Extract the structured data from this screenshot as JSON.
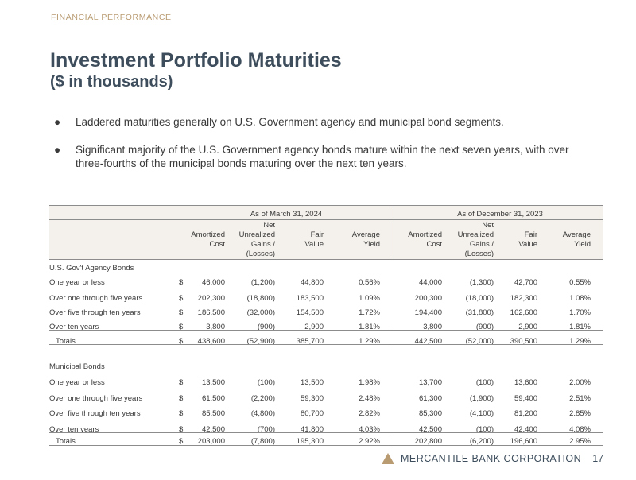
{
  "header": {
    "kicker": "FINANCIAL PERFORMANCE",
    "title": "Investment Portfolio Maturities",
    "subtitle": "($ in thousands)"
  },
  "bullets": [
    "Laddered maturities generally on U.S. Government agency and municipal bond segments.",
    "Significant majority of the U.S. Government agency bonds mature within the next seven years, with over three-fourths of the municipal bonds maturing over the next ten years."
  ],
  "table": {
    "group_left": "As of March 31, 2024",
    "group_right": "As of December 31, 2023",
    "columns": [
      "Amortized\nCost",
      "Net\nUnrealized\nGains /\n(Losses)",
      "Fair\nValue",
      "Average\nYield",
      "Amortized\nCost",
      "Net\nUnrealized\nGains /\n(Losses)",
      "Fair\nValue",
      "Average\nYield"
    ],
    "sections": [
      {
        "name": "U.S. Gov't Agency Bonds",
        "rows": [
          {
            "label": "One year or less",
            "values": [
              "46,000",
              "(1,200)",
              "44,800",
              "0.56%",
              "44,000",
              "(1,300)",
              "42,700",
              "0.55%"
            ]
          },
          {
            "label": "Over one through five years",
            "values": [
              "202,300",
              "(18,800)",
              "183,500",
              "1.09%",
              "200,300",
              "(18,000)",
              "182,300",
              "1.08%"
            ]
          },
          {
            "label": "Over five through ten years",
            "values": [
              "186,500",
              "(32,000)",
              "154,500",
              "1.72%",
              "194,400",
              "(31,800)",
              "162,600",
              "1.70%"
            ]
          },
          {
            "label": "Over ten years",
            "values": [
              "3,800",
              "(900)",
              "2,900",
              "1.81%",
              "3,800",
              "(900)",
              "2,900",
              "1.81%"
            ]
          }
        ],
        "total": {
          "label": "Totals",
          "values": [
            "438,600",
            "(52,900)",
            "385,700",
            "1.29%",
            "442,500",
            "(52,000)",
            "390,500",
            "1.29%"
          ]
        }
      },
      {
        "name": "Municipal Bonds",
        "rows": [
          {
            "label": "One year or less",
            "values": [
              "13,500",
              "(100)",
              "13,500",
              "1.98%",
              "13,700",
              "(100)",
              "13,600",
              "2.00%"
            ]
          },
          {
            "label": "Over one through five years",
            "values": [
              "61,500",
              "(2,200)",
              "59,300",
              "2.48%",
              "61,300",
              "(1,900)",
              "59,400",
              "2.51%"
            ]
          },
          {
            "label": "Over five through ten years",
            "values": [
              "85,500",
              "(4,800)",
              "80,700",
              "2.82%",
              "85,300",
              "(4,100)",
              "81,200",
              "2.85%"
            ]
          },
          {
            "label": "Over ten years",
            "values": [
              "42,500",
              "(700)",
              "41,800",
              "4.03%",
              "42,500",
              "(100)",
              "42,400",
              "4.08%"
            ]
          }
        ],
        "total": {
          "label": "Totals",
          "values": [
            "203,000",
            "(7,800)",
            "195,300",
            "2.92%",
            "202,800",
            "(6,200)",
            "196,600",
            "2.95%"
          ]
        }
      }
    ],
    "currency_symbol": "$"
  },
  "footer": {
    "brand": "MERCANTILE BANK CORPORATION",
    "page_number": "17",
    "logo_color": "#b99b72"
  }
}
